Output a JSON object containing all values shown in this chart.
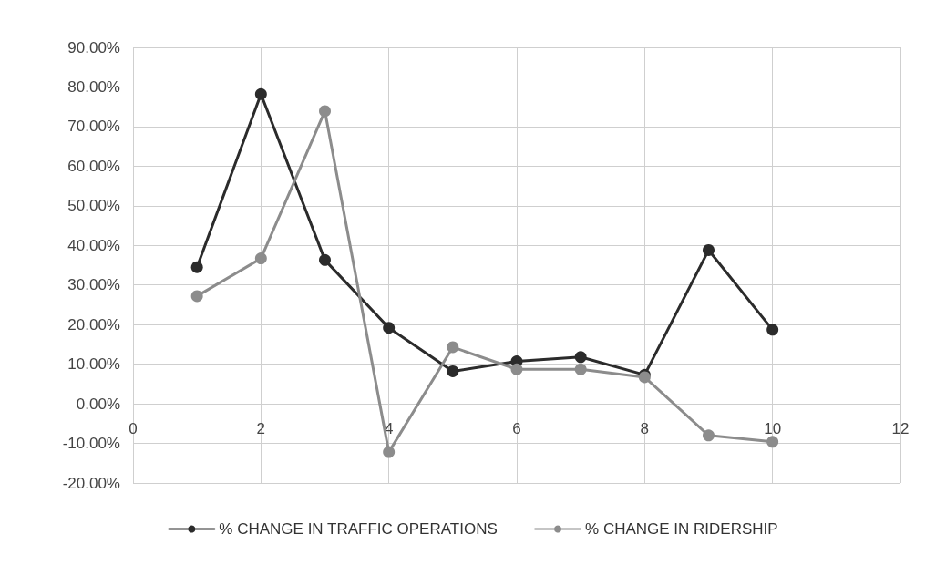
{
  "chart_data": {
    "type": "line",
    "x": [
      1,
      2,
      3,
      4,
      5,
      6,
      7,
      8,
      9,
      10
    ],
    "series": [
      {
        "name": "% CHANGE IN TRAFFIC OPERATIONS",
        "color": "#2b2b2b",
        "values": [
          34.5,
          78.2,
          36.3,
          19.2,
          8.2,
          10.7,
          11.8,
          7.3,
          38.8,
          18.7
        ]
      },
      {
        "name": "% CHANGE IN RIDERSHIP",
        "color": "#8c8c8c",
        "values": [
          27.2,
          36.7,
          73.9,
          -12.2,
          14.3,
          8.7,
          8.7,
          6.7,
          -8.0,
          -9.6
        ]
      }
    ],
    "xlim": [
      0,
      12
    ],
    "xticks": [
      0,
      2,
      4,
      6,
      8,
      10,
      12
    ],
    "ylim": [
      -20,
      90
    ],
    "yticks": [
      {
        "value": -20,
        "label": "-20.00%"
      },
      {
        "value": -10,
        "label": "-10.00%"
      },
      {
        "value": 0,
        "label": "0.00%"
      },
      {
        "value": 10,
        "label": "10.00%"
      },
      {
        "value": 20,
        "label": "20.00%"
      },
      {
        "value": 30,
        "label": "30.00%"
      },
      {
        "value": 40,
        "label": "40.00%"
      },
      {
        "value": 50,
        "label": "50.00%"
      },
      {
        "value": 60,
        "label": "60.00%"
      },
      {
        "value": 70,
        "label": "70.00%"
      },
      {
        "value": 80,
        "label": "80.00%"
      },
      {
        "value": 90,
        "label": "90.00%"
      }
    ],
    "grid": true,
    "legend": "bottom",
    "marker": "circle",
    "line_style": "solid"
  }
}
